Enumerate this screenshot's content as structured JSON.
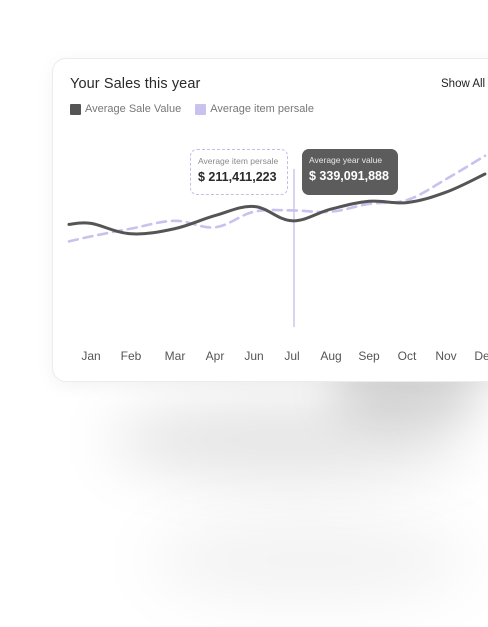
{
  "card": {
    "title": "Your Sales this year",
    "show_all_label": "Show All"
  },
  "legend": [
    {
      "label": "Average Sale Value",
      "color": "#555555"
    },
    {
      "label": "Average item persale",
      "color": "#c9c1ee"
    }
  ],
  "tooltips": {
    "item": {
      "label": "Average item persale",
      "value": "$ 211,411,223"
    },
    "year": {
      "label": "Average year value",
      "value": "$ 339,091,888"
    }
  },
  "chart_data": {
    "type": "line",
    "categories": [
      "Jan",
      "Feb",
      "Mar",
      "Apr",
      "Jun",
      "Jul",
      "Aug",
      "Sep",
      "Oct",
      "Nov",
      "Dec"
    ],
    "highlight_category": "Jul",
    "y_axis_shown": false,
    "grid": false,
    "legend_position": "top-left",
    "ylim": [
      0,
      100
    ],
    "series": [
      {
        "name": "Average Sale Value",
        "color": "#555555",
        "style": "solid",
        "values": [
          62,
          54,
          58,
          68,
          75,
          64,
          73,
          79,
          78,
          86,
          100
        ]
      },
      {
        "name": "Average item persale",
        "color": "#c9c1ee",
        "style": "dashed",
        "values": [
          52,
          58,
          64,
          59,
          71,
          72,
          71,
          77,
          80,
          96,
          114
        ]
      }
    ]
  }
}
